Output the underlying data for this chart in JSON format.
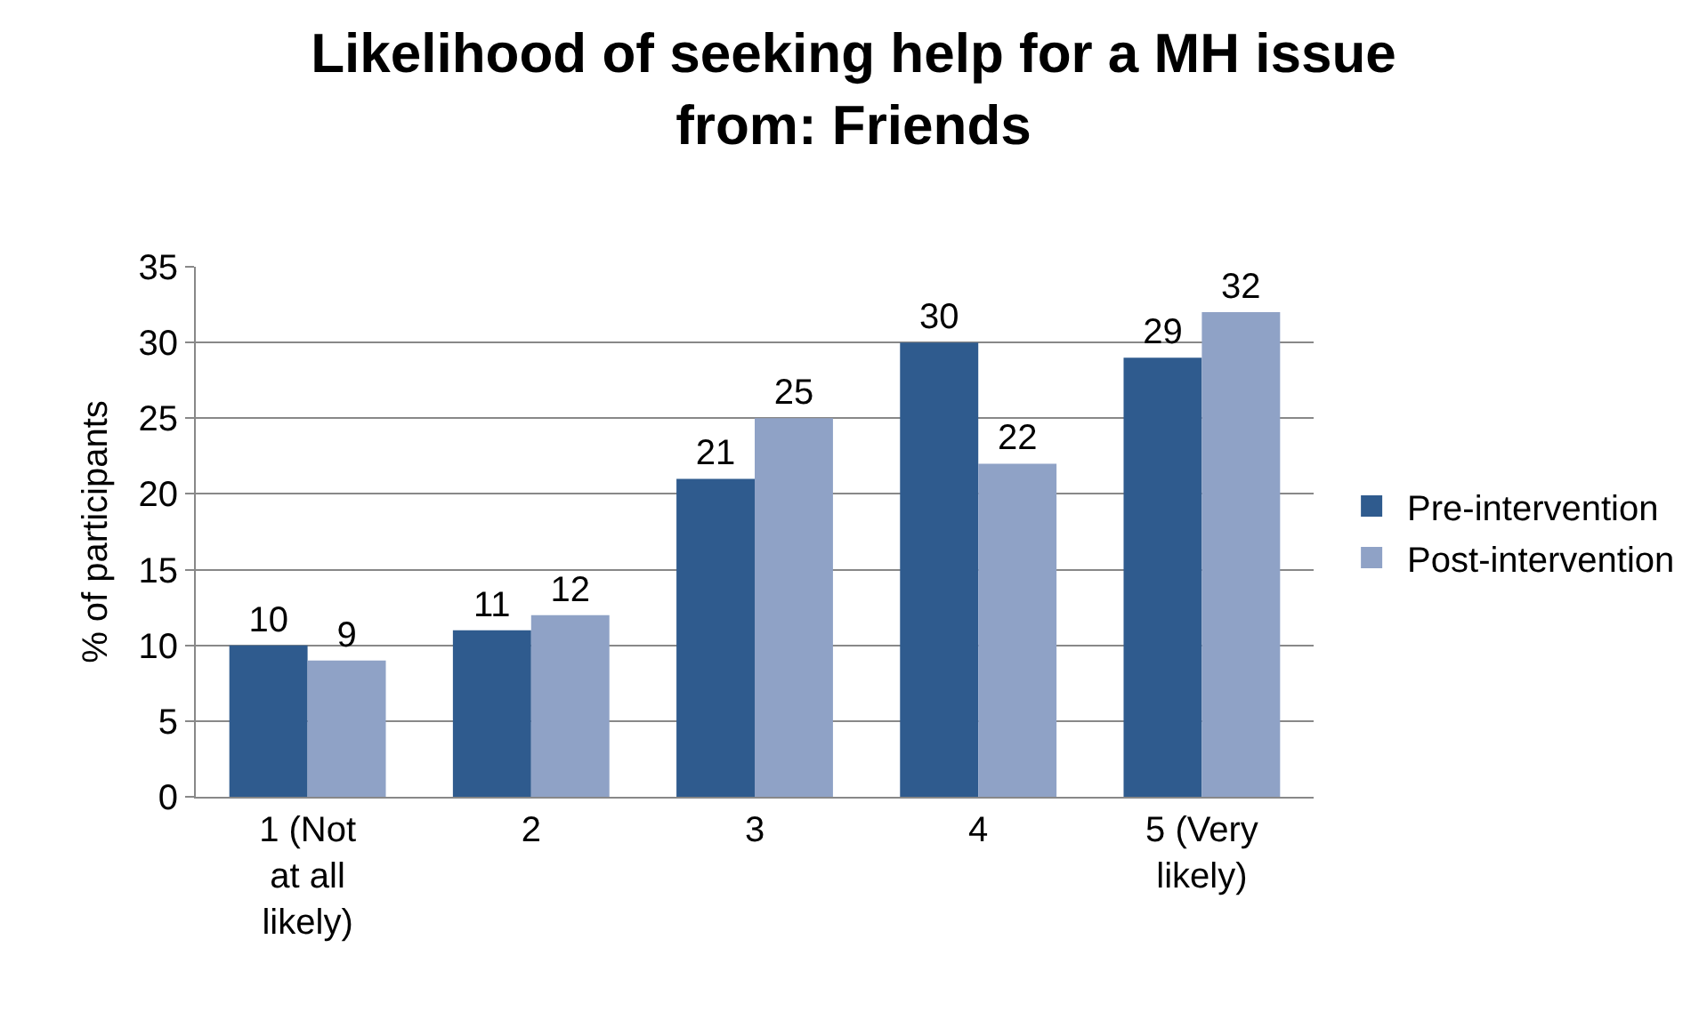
{
  "chart_data": {
    "type": "bar",
    "title": "Likelihood of seeking help for a MH issue from: Friends",
    "ylabel": "% of participants",
    "categories": [
      "1 (Not at all likely)",
      "2",
      "3",
      "4",
      "5 (Very likely)"
    ],
    "series": [
      {
        "name": "Pre-intervention",
        "color": "#2f5b8e",
        "values": [
          10,
          11,
          21,
          30,
          29
        ]
      },
      {
        "name": "Post-intervention",
        "color": "#8fa2c6",
        "values": [
          9,
          12,
          25,
          22,
          32
        ]
      }
    ],
    "ylim": [
      0,
      35
    ],
    "yticks": [
      0,
      5,
      10,
      15,
      20,
      25,
      30,
      35
    ],
    "grid": "y",
    "legend": "right",
    "data_labels": true
  }
}
